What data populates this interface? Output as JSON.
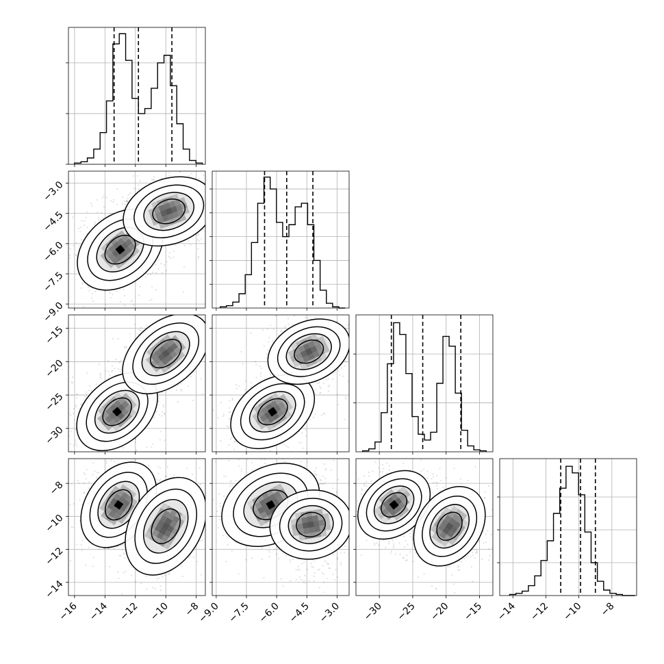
{
  "colors": {
    "background": "#ffffff",
    "axes": "#000000",
    "grid": "#b0b0b0",
    "histogram": "#000000",
    "points": "#000000",
    "density_cells": "#808080"
  },
  "chart_data": {
    "type": "corner",
    "title": "",
    "grid": true,
    "legend": "none",
    "parameters": [
      {
        "index": 0,
        "range": [
          -16.4,
          -7.4
        ],
        "ticks": [
          -16,
          -14,
          -12,
          -10,
          -8
        ],
        "tick_labels": [
          "−16",
          "−14",
          "−12",
          "−10",
          "−8"
        ],
        "quantiles": [
          -13.4,
          -11.8,
          -9.6
        ],
        "histogram": {
          "edges_range": [
            -16.0,
            -7.6
          ],
          "nbins": 20,
          "heights": [
            1,
            2,
            5,
            12,
            25,
            50,
            95,
            103,
            82,
            52,
            40,
            44,
            60,
            80,
            86,
            62,
            32,
            12,
            3,
            1
          ],
          "ylim": [
            0,
            108
          ],
          "yticks": [
            0,
            40,
            80
          ]
        }
      },
      {
        "index": 1,
        "range": [
          -9.2,
          -2.4
        ],
        "ticks": [
          -9.0,
          -7.5,
          -6.0,
          -4.5,
          -3.0
        ],
        "tick_labels": [
          "−9.0",
          "−7.5",
          "−6.0",
          "−4.5",
          "−3.0"
        ],
        "quantiles": [
          -6.6,
          -5.5,
          -4.2
        ],
        "histogram": {
          "edges_range": [
            -8.8,
            -2.6
          ],
          "nbins": 20,
          "heights": [
            1,
            2,
            5,
            12,
            28,
            55,
            88,
            110,
            100,
            72,
            60,
            70,
            85,
            88,
            70,
            40,
            15,
            4,
            1,
            0
          ],
          "ylim": [
            0,
            115
          ],
          "yticks": [
            20,
            40,
            60,
            80,
            100
          ]
        }
      },
      {
        "index": 2,
        "range": [
          -33.5,
          -13.0
        ],
        "ticks": [
          -30,
          -25,
          -20,
          -15
        ],
        "tick_labels": [
          "−30",
          "−25",
          "−20",
          "−15"
        ],
        "quantiles": [
          -28.2,
          -23.5,
          -17.8
        ],
        "histogram": {
          "edges_range": [
            -32.5,
            -14.0
          ],
          "nbins": 20,
          "heights": [
            1,
            3,
            10,
            40,
            90,
            132,
            120,
            80,
            36,
            18,
            12,
            20,
            70,
            118,
            108,
            60,
            22,
            6,
            2,
            1
          ],
          "ylim": [
            0,
            140
          ],
          "yticks": [
            50,
            100
          ]
        }
      },
      {
        "index": 3,
        "range": [
          -14.8,
          -6.5
        ],
        "ticks": [
          -14,
          -12,
          -10,
          -8
        ],
        "tick_labels": [
          "−14",
          "−12",
          "−10",
          "−8"
        ],
        "quantiles": [
          -11.1,
          -9.9,
          -9.0
        ],
        "histogram": {
          "edges_range": [
            -14.2,
            -6.6
          ],
          "nbins": 20,
          "heights": [
            1,
            2,
            4,
            9,
            18,
            32,
            50,
            75,
            98,
            118,
            112,
            92,
            58,
            30,
            13,
            5,
            2,
            1,
            0,
            0
          ],
          "ylim": [
            0,
            125
          ],
          "yticks": [
            30,
            60,
            90
          ]
        }
      }
    ],
    "joint": [
      {
        "row": 1,
        "col": 0,
        "clusters": [
          {
            "center": [
              -13.0,
              -6.3
            ],
            "sx": 0.8,
            "sy": 0.55,
            "rot": 40,
            "weight": 1.0
          },
          {
            "center": [
              -9.8,
              -4.4
            ],
            "sx": 0.8,
            "sy": 0.5,
            "rot": 20,
            "weight": 0.9
          }
        ]
      },
      {
        "row": 2,
        "col": 0,
        "clusters": [
          {
            "center": [
              -13.2,
              -27.5
            ],
            "sx": 0.8,
            "sy": 1.4,
            "rot": 42,
            "weight": 1.0
          },
          {
            "center": [
              -10.0,
              -18.8
            ],
            "sx": 0.9,
            "sy": 1.2,
            "rot": 40,
            "weight": 0.9
          }
        ]
      },
      {
        "row": 2,
        "col": 1,
        "clusters": [
          {
            "center": [
              -6.2,
              -27.5
            ],
            "sx": 0.6,
            "sy": 1.4,
            "rot": 35,
            "weight": 1.0
          },
          {
            "center": [
              -4.4,
              -18.5
            ],
            "sx": 0.55,
            "sy": 1.4,
            "rot": 25,
            "weight": 0.9
          }
        ]
      },
      {
        "row": 3,
        "col": 0,
        "clusters": [
          {
            "center": [
              -13.1,
              -9.3
            ],
            "sx": 0.8,
            "sy": 0.6,
            "rot": 55,
            "weight": 1.0
          },
          {
            "center": [
              -10.0,
              -10.6
            ],
            "sx": 0.9,
            "sy": 0.65,
            "rot": 60,
            "weight": 0.9
          }
        ]
      },
      {
        "row": 3,
        "col": 1,
        "clusters": [
          {
            "center": [
              -6.3,
              -9.3
            ],
            "sx": 0.65,
            "sy": 0.75,
            "rot": 30,
            "weight": 1.0
          },
          {
            "center": [
              -4.3,
              -10.5
            ],
            "sx": 0.45,
            "sy": 0.85,
            "rot": 10,
            "weight": 0.9
          }
        ]
      },
      {
        "row": 3,
        "col": 2,
        "clusters": [
          {
            "center": [
              -27.8,
              -9.3
            ],
            "sx": 1.5,
            "sy": 0.6,
            "rot": 40,
            "weight": 1.0
          },
          {
            "center": [
              -19.5,
              -10.6
            ],
            "sx": 1.6,
            "sy": 0.65,
            "rot": 55,
            "weight": 0.9
          }
        ]
      }
    ]
  }
}
